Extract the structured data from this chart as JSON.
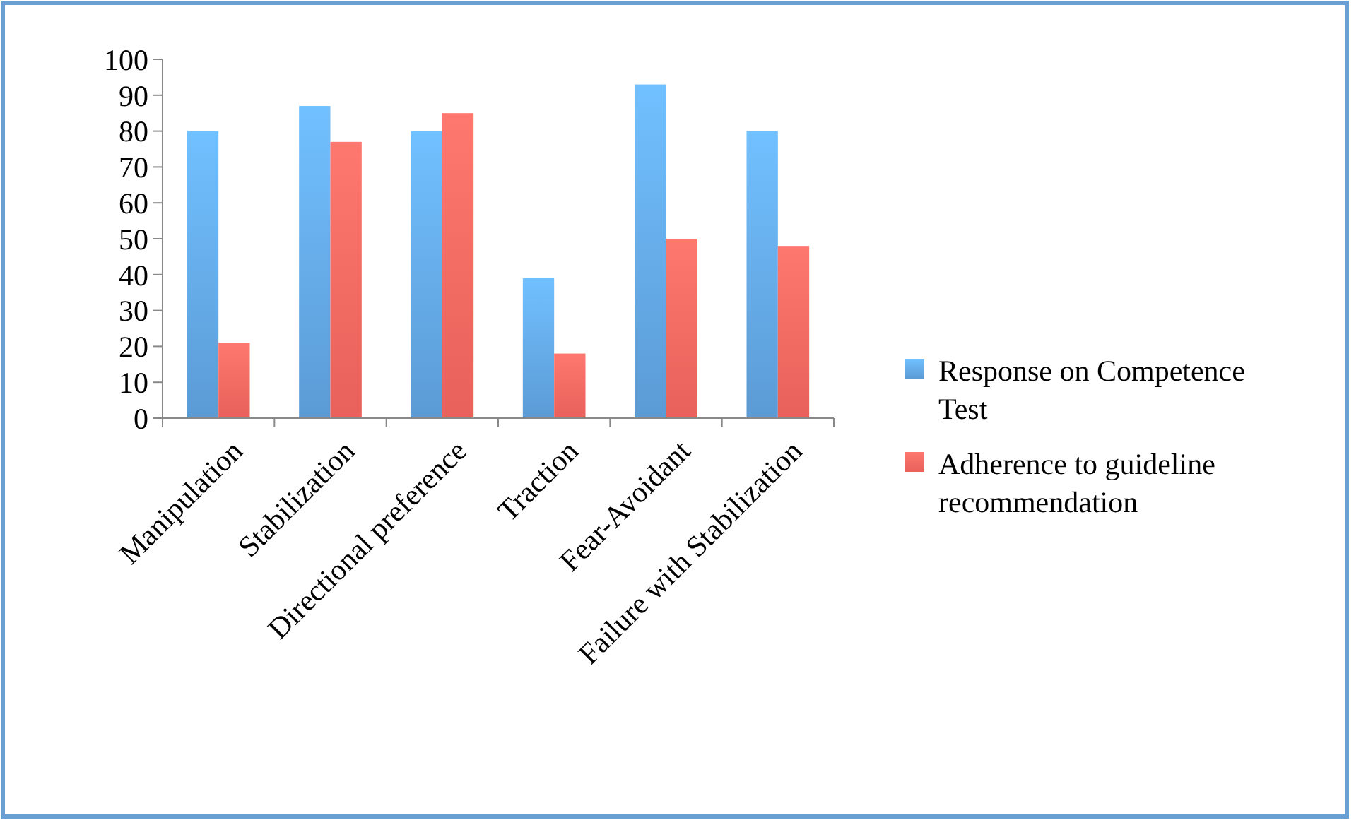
{
  "chart_data": {
    "type": "bar",
    "categories": [
      "Manipulation",
      "Stabilization",
      "Directional preference",
      "Traction",
      "Fear-Avoidant",
      "Failure with Stabilization"
    ],
    "series": [
      {
        "name": "Response on Competence Test",
        "color": "#5b9bd5",
        "values": [
          80,
          87,
          80,
          39,
          93,
          80
        ]
      },
      {
        "name": "Adherence to guideline recommendation",
        "color": "#e8615a",
        "values": [
          21,
          77,
          85,
          18,
          50,
          48
        ]
      }
    ],
    "ylim": [
      0,
      100
    ],
    "yticks": [
      0,
      10,
      20,
      30,
      40,
      50,
      60,
      70,
      80,
      90,
      100
    ],
    "grid": false,
    "legend": "right"
  }
}
